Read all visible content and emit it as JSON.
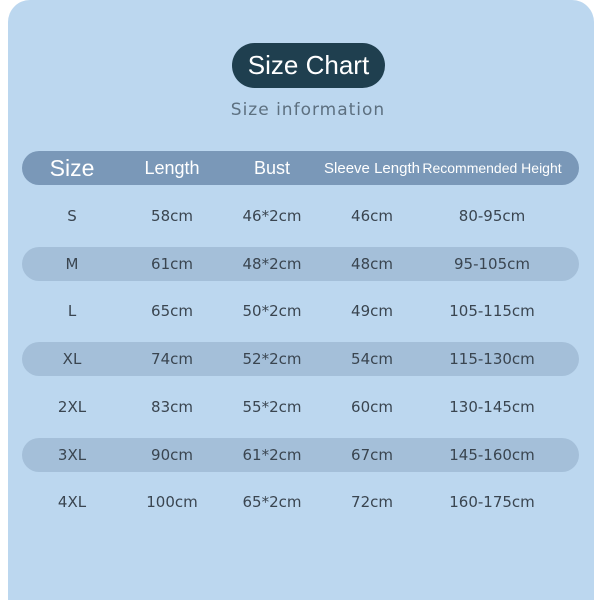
{
  "title": "Size Chart",
  "subtitle": "Size information",
  "headers": [
    "Size",
    "Length",
    "Bust",
    "Sleeve Length",
    "Recommended Height"
  ],
  "rows": [
    [
      "S",
      "58cm",
      "46*2cm",
      "46cm",
      "80-95cm"
    ],
    [
      "M",
      "61cm",
      "48*2cm",
      "48cm",
      "95-105cm"
    ],
    [
      "L",
      "65cm",
      "50*2cm",
      "49cm",
      "105-115cm"
    ],
    [
      "XL",
      "74cm",
      "52*2cm",
      "54cm",
      "115-130cm"
    ],
    [
      "2XL",
      "83cm",
      "55*2cm",
      "60cm",
      "130-145cm"
    ],
    [
      "3XL",
      "90cm",
      "61*2cm",
      "67cm",
      "145-160cm"
    ],
    [
      "4XL",
      "100cm",
      "65*2cm",
      "72cm",
      "160-175cm"
    ]
  ],
  "colors": {
    "background": "#bcd7ef",
    "header": "#7a98b8",
    "stripe": "#a4bfd9",
    "title_pill": "#1f3f4f"
  }
}
